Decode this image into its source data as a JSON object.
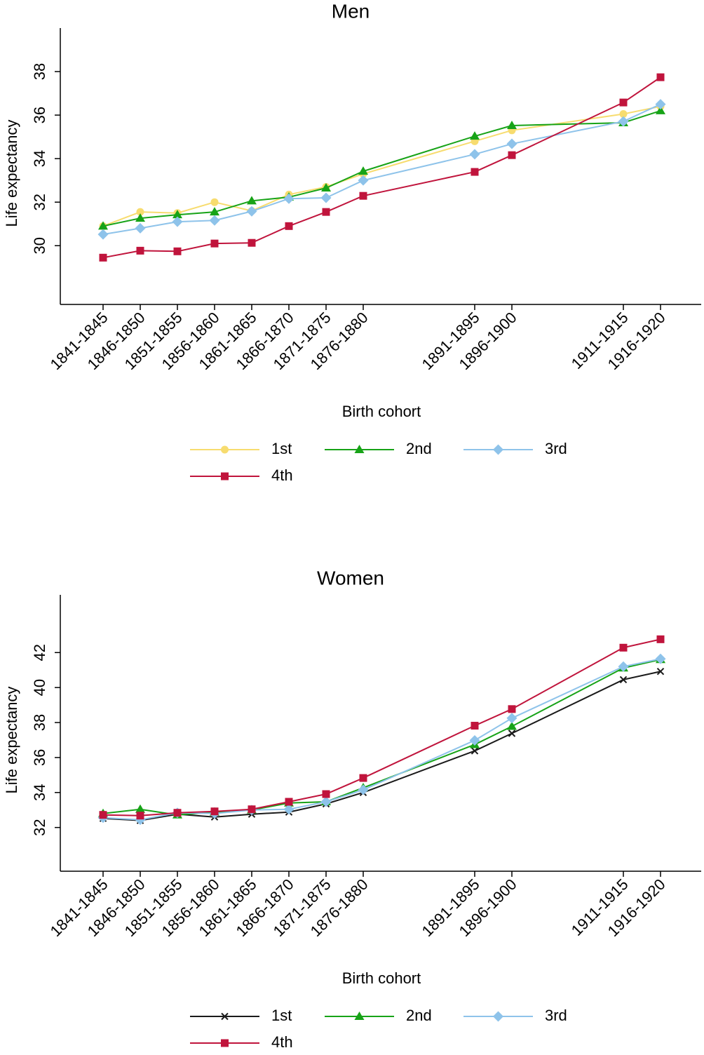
{
  "chart_data": [
    {
      "type": "line",
      "title": "Men",
      "x_label": "Birth cohort",
      "y_label": "Life expectancy",
      "categories": [
        "1841-1845",
        "1846-1850",
        "1851-1855",
        "1856-1860",
        "1861-1865",
        "1866-1870",
        "1871-1875",
        "1876-1880",
        null,
        null,
        "1891-1895",
        "1896-1900",
        null,
        null,
        "1911-1915",
        "1916-1920"
      ],
      "ylim": [
        27.3,
        40
      ],
      "yticks": [
        30,
        32,
        34,
        36,
        38
      ],
      "legend": "bottom",
      "series": [
        {
          "name": "1st",
          "color": "#f7dc6f",
          "marker": "circle",
          "values": [
            30.9,
            31.55,
            31.5,
            32.0,
            31.6,
            32.35,
            32.7,
            33.3,
            null,
            null,
            34.8,
            35.3,
            null,
            null,
            36.05,
            36.4
          ]
        },
        {
          "name": "2nd",
          "color": "#17a317",
          "marker": "triangle",
          "values": [
            30.9,
            31.26,
            31.42,
            31.55,
            32.06,
            32.23,
            32.65,
            33.42,
            null,
            null,
            35.03,
            35.52,
            null,
            null,
            35.65,
            36.2
          ]
        },
        {
          "name": "3rd",
          "color": "#8ec3ea",
          "marker": "diamond",
          "values": [
            30.52,
            30.8,
            31.1,
            31.16,
            31.58,
            32.16,
            32.2,
            33.0,
            null,
            null,
            34.2,
            34.68,
            null,
            null,
            35.71,
            36.5
          ]
        },
        {
          "name": "4th",
          "color": "#c0143c",
          "marker": "square",
          "values": [
            29.45,
            29.77,
            29.74,
            30.1,
            30.13,
            30.9,
            31.55,
            32.29,
            null,
            null,
            33.39,
            34.16,
            null,
            null,
            36.58,
            37.74
          ]
        }
      ]
    },
    {
      "type": "line",
      "title": "Women",
      "x_label": "Birth cohort",
      "y_label": "Life expectancy",
      "categories": [
        "1841-1845",
        "1846-1850",
        "1851-1855",
        "1856-1860",
        "1861-1865",
        "1866-1870",
        "1871-1875",
        "1876-1880",
        null,
        null,
        "1891-1895",
        "1896-1900",
        null,
        null,
        "1911-1915",
        "1916-1920"
      ],
      "ylim": [
        29.5,
        45.3
      ],
      "yticks": [
        32,
        34,
        36,
        38,
        40,
        42
      ],
      "legend": "bottom",
      "series": [
        {
          "name": "1st",
          "color": "#1a1a1a",
          "marker": "x",
          "values": [
            32.52,
            32.4,
            32.76,
            32.6,
            32.76,
            32.88,
            33.35,
            34.0,
            null,
            null,
            36.38,
            37.38,
            null,
            null,
            40.45,
            40.92
          ]
        },
        {
          "name": "2nd",
          "color": "#17a317",
          "marker": "triangle",
          "values": [
            32.8,
            33.04,
            32.72,
            32.88,
            33.0,
            33.4,
            33.47,
            34.27,
            null,
            null,
            36.74,
            37.78,
            null,
            null,
            41.12,
            41.6
          ]
        },
        {
          "name": "3rd",
          "color": "#8ec3ea",
          "marker": "diamond",
          "values": [
            32.56,
            32.44,
            32.84,
            32.8,
            33.0,
            33.04,
            33.47,
            34.15,
            null,
            null,
            36.98,
            38.25,
            null,
            null,
            41.2,
            41.64
          ]
        },
        {
          "name": "4th",
          "color": "#c0143c",
          "marker": "square",
          "values": [
            32.72,
            32.68,
            32.84,
            32.92,
            33.04,
            33.47,
            33.91,
            34.83,
            null,
            null,
            37.82,
            38.77,
            null,
            null,
            42.28,
            42.76
          ]
        }
      ]
    }
  ]
}
